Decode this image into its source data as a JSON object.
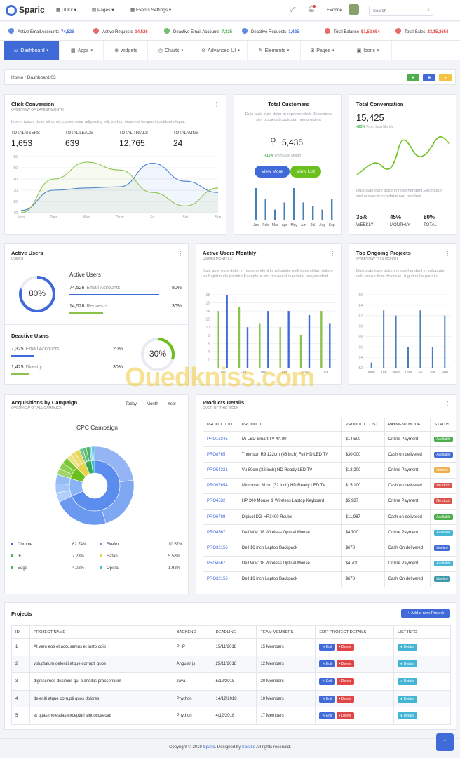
{
  "header": {
    "brand": "Sparic",
    "menus": [
      "UI Kit",
      "Pages",
      "Events Settings"
    ],
    "user": "Evonne",
    "search_placeholder": "Search"
  },
  "stats": [
    {
      "label": "Active Email Accounts",
      "value": "74,526",
      "color": "#3f6ad8"
    },
    {
      "label": "Active Requests",
      "value": "14,526",
      "color": "#e04646"
    },
    {
      "label": "Deactive Email Accounts",
      "value": "7,325",
      "color": "#4cae4c"
    },
    {
      "label": "Deactive Requests",
      "value": "1,425",
      "color": "#3f6ad8"
    },
    {
      "label": "Total Balance",
      "value": "$1,52,654",
      "color": "#e04646"
    },
    {
      "label": "Total Sales",
      "value": "23,15,2654",
      "color": "#e04646"
    }
  ],
  "nav": [
    "Dashboard",
    "Apps",
    "widgets",
    "Charts",
    "Advanced UI",
    "Elements",
    "Pages",
    "Icons"
  ],
  "breadcrumb": {
    "home": "Home",
    "current": "Dashboard 03"
  },
  "click": {
    "title": "Click Conversion",
    "sub": "OVERVIEW OF LATEST MONTH",
    "text": "Lorem ipsum dolor sit amet, consectetur adipiscing elit, sed do eiusmod tempor incididunt aliqua.",
    "metrics": [
      {
        "label": "TOTAL USERS",
        "value": "1,653"
      },
      {
        "label": "TOTAL LEADS",
        "value": "639"
      },
      {
        "label": "TOTAL TRIALS",
        "value": "12,765"
      },
      {
        "label": "TOTAL WINS",
        "value": "24"
      }
    ]
  },
  "click_chart": {
    "type": "line",
    "categories": [
      "Mon",
      "Tues",
      "Wed",
      "Thurs",
      "Fri",
      "Sat",
      "Sun"
    ],
    "yticks": [
      10,
      20,
      30,
      40,
      50,
      60
    ],
    "ylim": [
      10,
      60
    ],
    "series": [
      {
        "color": "#4a7fd4",
        "values": [
          12,
          30,
          32,
          33,
          54,
          38,
          28
        ]
      },
      {
        "color": "#8bc34a",
        "values": [
          10,
          40,
          55,
          48,
          28,
          16,
          32
        ]
      }
    ]
  },
  "customers": {
    "title": "Total Customers",
    "text": "Duis aute irure dolor in reprehenderit. Excepteur sint occaecat cupidatat non proident",
    "value": "5,435",
    "change": "+15%",
    "change_label": "From Last Month",
    "btn_more": "View More",
    "btn_list": "View List",
    "chart": {
      "type": "bar",
      "categories": [
        "Jan",
        "Feb",
        "Mar",
        "Apr",
        "May",
        "Jun",
        "Jul",
        "Aug",
        "Sep"
      ],
      "values": [
        9,
        6,
        3,
        5,
        9,
        5,
        4,
        3,
        6
      ]
    }
  },
  "conversation": {
    "title": "Total Conversation",
    "value": "15,425",
    "change": "+23%",
    "change_label": "From Last Month",
    "text": "Duis aute irure dolor in reprehenderit.Excepteur sint occaecat cupidatat non proident",
    "metrics": [
      {
        "value": "35%",
        "label": "WEEKLY"
      },
      {
        "value": "45%",
        "label": "MONTHLY"
      },
      {
        "value": "80%",
        "label": "TOTAL"
      }
    ]
  },
  "active_users": {
    "title": "Active Users",
    "sub": "USERS",
    "percent": "80%",
    "heading": "Active Users",
    "rows": [
      {
        "value": "74,526",
        "label": "Email Accounts",
        "pct": "80%",
        "color": "#3f6ad8"
      },
      {
        "value": "14,526",
        "label": "Requests",
        "pct": "30%",
        "color": "#8bc34a"
      }
    ]
  },
  "deactive": {
    "title": "Deactive Users",
    "percent": "30%",
    "rows": [
      {
        "value": "7,325",
        "label": "Email Accounts",
        "pct": "20%",
        "color": "#3f6ad8"
      },
      {
        "value": "1,425",
        "label": "Directly",
        "pct": "30%",
        "color": "#8bc34a"
      }
    ]
  },
  "monthly": {
    "title": "Active Users Monthly",
    "sub": "USERS MONTHLY",
    "text": "Duis aute irure dolor in reprehenderit in voluptate velit esse cillum dolore eu fugiat nulla pariatur.Excepteur sint occaecat cupidatat non proident",
    "chart": {
      "type": "bar",
      "categories": [
        "Jan",
        "Feb",
        "Mar",
        "Apr",
        "May",
        "Jun"
      ],
      "yticks": [
        2,
        4,
        6,
        8,
        10,
        12,
        14,
        16,
        18
      ],
      "ylim": [
        0,
        18
      ],
      "series": [
        {
          "color": "#8bc34a",
          "values": [
            14,
            15,
            11,
            10,
            8,
            14
          ]
        },
        {
          "color": "#3f6ad8",
          "values": [
            18,
            10,
            14,
            14,
            13,
            11
          ]
        }
      ]
    }
  },
  "projects_top": {
    "title": "Top Ongoing Projects",
    "sub": "OVERVIEW THIS MONTH",
    "text": "Duis aute irure dolor in reprehenderit in voluptate velit esse cillum dolore eu fugiat nulla pariatur.",
    "chart": {
      "type": "bar",
      "categories": [
        "Mon",
        "Tue",
        "Wed",
        "Thur",
        "Fri",
        "Sat",
        "Sun"
      ],
      "yticks": [
        52,
        54,
        56,
        58,
        60,
        62,
        64,
        66
      ],
      "ylim": [
        52,
        66
      ],
      "values": [
        53,
        63,
        62,
        56,
        63,
        56,
        62
      ]
    }
  },
  "campaign": {
    "title": "Acquisitions by Campaign",
    "sub": "OVERVIEW OF ALL CAMPAIGN",
    "tabs": [
      "Today",
      "Month",
      "Year"
    ],
    "chart_title": "CPC Campaign",
    "legend": [
      {
        "name": "Chrome",
        "value": "62.74%",
        "color": "#3f6ad8"
      },
      {
        "name": "Firefox",
        "value": "10.57%",
        "color": "#6f8ce8"
      },
      {
        "name": "IE",
        "value": "7.23%",
        "color": "#4cae4c"
      },
      {
        "name": "Safari",
        "value": "5.58%",
        "color": "#e6d34a"
      },
      {
        "name": "Edge",
        "value": "4.02%",
        "color": "#4cae4c"
      },
      {
        "name": "Opera",
        "value": "1.92%",
        "color": "#45b5d6"
      }
    ]
  },
  "chart_data": {
    "type": "pie",
    "title": "CPC Campaign",
    "categories": [
      "Chrome",
      "Firefox",
      "IE",
      "Safari",
      "Edge",
      "Opera"
    ],
    "values": [
      62.74,
      10.57,
      7.23,
      5.58,
      4.02,
      1.92
    ]
  },
  "products": {
    "title": "Products Details",
    "sub": "OVER OF THIS WEEK",
    "headers": [
      "PRODUCT ID",
      "PRODUCT",
      "PRODUCT COST",
      "PAYMENT MODE",
      "STATUS"
    ],
    "rows": [
      [
        "PRO12345",
        "Mi LED Smart TV 4A 80",
        "$14,500",
        "Online Payment",
        "Available",
        "#4cae4c"
      ],
      [
        "PRO8765",
        "Thomson R9 122cm (48 inch) Full HD LED TV",
        "$30,000",
        "Cash on delivered",
        "Available",
        "#3f6ad8"
      ],
      [
        "PRO54321",
        "Vu 80cm (32 inch) HD Ready LED TV",
        "$13,200",
        "Online Payment",
        "Limited",
        "#f0ad4e"
      ],
      [
        "PRO97654",
        "Micromax 81cm (32 inch) HD Ready LED TV",
        "$15,100",
        "Cash on delivered",
        "No stock",
        "#d9534f"
      ],
      [
        "PRO4532",
        "HP 200 Mouse & Wireless Laptop Keyboard",
        "$5,987",
        "Online Payment",
        "No stock",
        "#d9534f"
      ],
      [
        "PRO6789",
        "Digisol DG-HR3400 Router",
        "$11,987",
        "Cash on delivered",
        "Available",
        "#4cae4c"
      ],
      [
        "PRO4567",
        "Dell WM118 Wireless Optical Mouse",
        "$4,700",
        "Online Payment",
        "Available",
        "#45b5d6"
      ],
      [
        "PRO32156",
        "Dell 16 inch Laptop Backpack",
        "$678",
        "Cash On delivered",
        "Limited",
        "#3f6ad8"
      ],
      [
        "PRO4567",
        "Dell WM118 Wireless Optical Mouse",
        "$4,700",
        "Online Payment",
        "Available",
        "#45b5d6"
      ],
      [
        "PRO32156",
        "Dell 16 inch Laptop Backpack",
        "$678",
        "Cash On delivered",
        "Limited",
        "#3a9aa8"
      ]
    ]
  },
  "projects": {
    "title": "Projects",
    "add_btn": "Add a new Project",
    "headers": [
      "ID",
      "PROJECT NAME",
      "BACKEND",
      "DEADLINE",
      "TEAM MEMBERS",
      "EDIT PROJECT DETAILS",
      "LIST INFO"
    ],
    "edit": "Edit",
    "delete": "Delete",
    "details": "Details",
    "rows": [
      [
        "1",
        "At vero eos et accusamus et iusto odio",
        "PHP",
        "15/11/2018",
        "15 Members"
      ],
      [
        "2",
        "voluptatum deleniti atque corrupti quos",
        "Angular js",
        "25/11/2018",
        "12 Members"
      ],
      [
        "3",
        "dignissimos ducimus qui blanditiis praesentium",
        "Java",
        "5/12/2018",
        "20 Members"
      ],
      [
        "4",
        "deleniti atque corrupti quos dolores",
        "Phython",
        "14/12/2018",
        "10 Members"
      ],
      [
        "5",
        "et quas molestias excepturi sint occaecati",
        "Phython",
        "4/12/2018",
        "17 Members"
      ]
    ]
  },
  "footer": {
    "pre": "Copyright © 2019 ",
    "brand": "Sparic",
    "mid": ". Designed by ",
    "designer": "Spruko",
    "post": " All rights reserved."
  },
  "watermark": "Ouedkniss.com"
}
